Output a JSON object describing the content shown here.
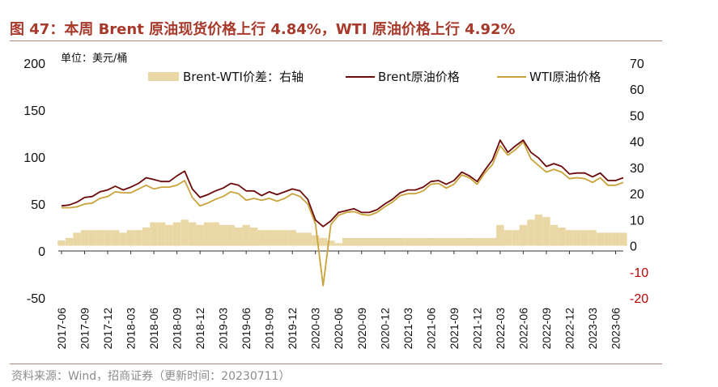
{
  "title": "图 47：本周 Brent 原油现货价格上行 4.84%，WTI 原油价格上行 4.92%",
  "source": "资料来源：Wind，招商证券（更新时间：20230711）",
  "colors": {
    "title": "#a83a2c",
    "brent": "#6b0a0a",
    "wti": "#c9a33c",
    "spread": "#e9d7a6",
    "negative_tick": "#c00000"
  },
  "chart_data": {
    "type": "line",
    "unit_label": "单位：美元/桶",
    "legend_position": "top",
    "grid": false,
    "x_ticks": [
      "2017-06",
      "2017-09",
      "2017-12",
      "2018-03",
      "2018-06",
      "2018-09",
      "2018-12",
      "2019-03",
      "2019-06",
      "2019-09",
      "2019-12",
      "2020-03",
      "2020-06",
      "2020-09",
      "2020-12",
      "2021-03",
      "2021-06",
      "2021-09",
      "2021-12",
      "2022-03",
      "2022-06",
      "2022-09",
      "2022-12",
      "2023-03",
      "2023-06"
    ],
    "y_left": {
      "ticks": [
        200,
        150,
        100,
        50,
        0,
        -50
      ],
      "range": [
        -50,
        200
      ]
    },
    "y_right": {
      "ticks": [
        70,
        60,
        50,
        40,
        30,
        20,
        10,
        0,
        -10,
        -20
      ],
      "range": [
        -20,
        70
      ]
    },
    "series": [
      {
        "name": "Brent-WTI价差：右轴",
        "type": "area",
        "axis": "right",
        "x": [
          "2017-06",
          "2017-07",
          "2017-08",
          "2017-09",
          "2017-10",
          "2017-11",
          "2017-12",
          "2018-01",
          "2018-02",
          "2018-03",
          "2018-04",
          "2018-05",
          "2018-06",
          "2018-07",
          "2018-08",
          "2018-09",
          "2018-10",
          "2018-11",
          "2018-12",
          "2019-01",
          "2019-02",
          "2019-03",
          "2019-04",
          "2019-05",
          "2019-06",
          "2019-07",
          "2019-08",
          "2019-09",
          "2019-10",
          "2019-11",
          "2019-12",
          "2020-01",
          "2020-02",
          "2020-03",
          "2020-04",
          "2020-05",
          "2020-06",
          "2020-07",
          "2020-08",
          "2020-09",
          "2020-10",
          "2020-11",
          "2020-12",
          "2021-01",
          "2021-02",
          "2021-03",
          "2021-04",
          "2021-05",
          "2021-06",
          "2021-07",
          "2021-08",
          "2021-09",
          "2021-10",
          "2021-11",
          "2021-12",
          "2022-01",
          "2022-02",
          "2022-03",
          "2022-04",
          "2022-05",
          "2022-06",
          "2022-07",
          "2022-08",
          "2022-09",
          "2022-10",
          "2022-11",
          "2022-12",
          "2023-01",
          "2023-02",
          "2023-03",
          "2023-04",
          "2023-05",
          "2023-06",
          "2023-07"
        ],
        "values": [
          2,
          3,
          5,
          6,
          6,
          6,
          6,
          6,
          5,
          6,
          6,
          7,
          9,
          9,
          8,
          9,
          10,
          9,
          8,
          9,
          9,
          8,
          8,
          7,
          8,
          7,
          6,
          6,
          6,
          6,
          6,
          5,
          5,
          4,
          3,
          2,
          1,
          3,
          3,
          3,
          3,
          3,
          3,
          3,
          3,
          3,
          3,
          3,
          3,
          3,
          3,
          3,
          3,
          3,
          3,
          3,
          3,
          8,
          6,
          6,
          8,
          10,
          12,
          11,
          8,
          7,
          6,
          6,
          6,
          6,
          5,
          5,
          5,
          5
        ]
      },
      {
        "name": "Brent原油价格",
        "type": "line",
        "axis": "left",
        "x": [
          "2017-06",
          "2017-07",
          "2017-08",
          "2017-09",
          "2017-10",
          "2017-11",
          "2017-12",
          "2018-01",
          "2018-02",
          "2018-03",
          "2018-04",
          "2018-05",
          "2018-06",
          "2018-07",
          "2018-08",
          "2018-09",
          "2018-10",
          "2018-11",
          "2018-12",
          "2019-01",
          "2019-02",
          "2019-03",
          "2019-04",
          "2019-05",
          "2019-06",
          "2019-07",
          "2019-08",
          "2019-09",
          "2019-10",
          "2019-11",
          "2019-12",
          "2020-01",
          "2020-02",
          "2020-03",
          "2020-04",
          "2020-05",
          "2020-06",
          "2020-07",
          "2020-08",
          "2020-09",
          "2020-10",
          "2020-11",
          "2020-12",
          "2021-01",
          "2021-02",
          "2021-03",
          "2021-04",
          "2021-05",
          "2021-06",
          "2021-07",
          "2021-08",
          "2021-09",
          "2021-10",
          "2021-11",
          "2021-12",
          "2022-01",
          "2022-02",
          "2022-03",
          "2022-04",
          "2022-05",
          "2022-06",
          "2022-07",
          "2022-08",
          "2022-09",
          "2022-10",
          "2022-11",
          "2022-12",
          "2023-01",
          "2023-02",
          "2023-03",
          "2023-04",
          "2023-05",
          "2023-06",
          "2023-07"
        ],
        "values": [
          48,
          49,
          52,
          57,
          58,
          63,
          65,
          69,
          65,
          68,
          72,
          78,
          76,
          74,
          74,
          80,
          85,
          66,
          57,
          60,
          64,
          67,
          72,
          70,
          64,
          64,
          59,
          63,
          60,
          63,
          66,
          64,
          55,
          33,
          26,
          32,
          41,
          43,
          45,
          41,
          41,
          44,
          50,
          55,
          62,
          65,
          65,
          68,
          74,
          75,
          71,
          75,
          84,
          80,
          74,
          86,
          97,
          118,
          105,
          112,
          118,
          105,
          99,
          90,
          93,
          90,
          82,
          83,
          83,
          79,
          83,
          75,
          75,
          78
        ]
      },
      {
        "name": "WTI原油价格",
        "type": "line",
        "axis": "left",
        "x": [
          "2017-06",
          "2017-07",
          "2017-08",
          "2017-09",
          "2017-10",
          "2017-11",
          "2017-12",
          "2018-01",
          "2018-02",
          "2018-03",
          "2018-04",
          "2018-05",
          "2018-06",
          "2018-07",
          "2018-08",
          "2018-09",
          "2018-10",
          "2018-11",
          "2018-12",
          "2019-01",
          "2019-02",
          "2019-03",
          "2019-04",
          "2019-05",
          "2019-06",
          "2019-07",
          "2019-08",
          "2019-09",
          "2019-10",
          "2019-11",
          "2019-12",
          "2020-01",
          "2020-02",
          "2020-03",
          "2020-04",
          "2020-05",
          "2020-06",
          "2020-07",
          "2020-08",
          "2020-09",
          "2020-10",
          "2020-11",
          "2020-12",
          "2021-01",
          "2021-02",
          "2021-03",
          "2021-04",
          "2021-05",
          "2021-06",
          "2021-07",
          "2021-08",
          "2021-09",
          "2021-10",
          "2021-11",
          "2021-12",
          "2022-01",
          "2022-02",
          "2022-03",
          "2022-04",
          "2022-05",
          "2022-06",
          "2022-07",
          "2022-08",
          "2022-09",
          "2022-10",
          "2022-11",
          "2022-12",
          "2023-01",
          "2023-02",
          "2023-03",
          "2023-04",
          "2023-05",
          "2023-06",
          "2023-07"
        ],
        "values": [
          46,
          46,
          47,
          50,
          51,
          56,
          58,
          63,
          62,
          62,
          66,
          70,
          66,
          68,
          68,
          70,
          75,
          57,
          48,
          51,
          55,
          58,
          63,
          61,
          54,
          56,
          54,
          56,
          53,
          56,
          61,
          58,
          50,
          29,
          -37,
          28,
          38,
          41,
          42,
          39,
          38,
          41,
          47,
          52,
          59,
          61,
          61,
          64,
          71,
          72,
          67,
          71,
          81,
          78,
          71,
          83,
          92,
          112,
          102,
          108,
          116,
          98,
          91,
          84,
          87,
          84,
          77,
          78,
          77,
          73,
          78,
          70,
          70,
          73
        ]
      }
    ]
  }
}
